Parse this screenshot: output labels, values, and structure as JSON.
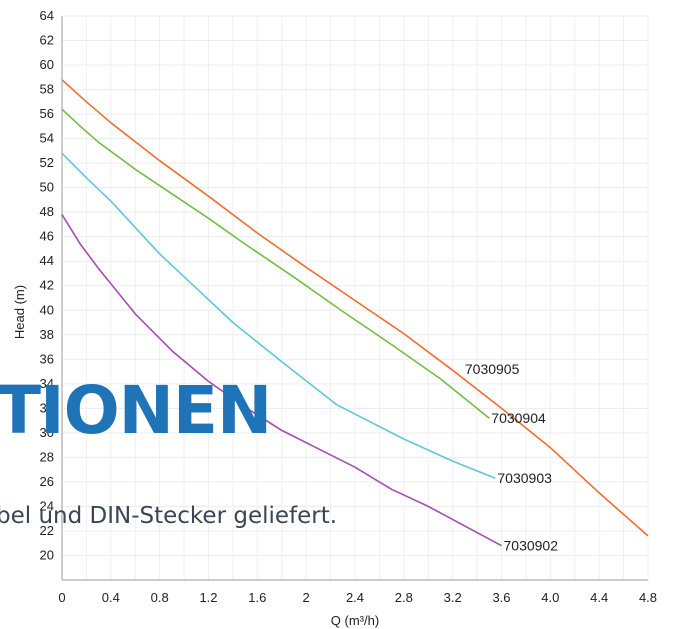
{
  "chart_data": {
    "type": "line",
    "xlabel": "Q (m³/h)",
    "ylabel": "Head (m)",
    "xlim": [
      0,
      4.8
    ],
    "ylim": [
      18,
      64
    ],
    "x_ticks": [
      "0",
      "0.4",
      "0.8",
      "1.2",
      "1.6",
      "2",
      "2.4",
      "2.8",
      "3.2",
      "3.6",
      "4.0",
      "4.4",
      "4.8"
    ],
    "y_ticks": [
      "20",
      "22",
      "24",
      "26",
      "28",
      "30",
      "32",
      "34",
      "36",
      "38",
      "40",
      "42",
      "44",
      "46",
      "48",
      "50",
      "52",
      "54",
      "56",
      "58",
      "60",
      "62",
      "64"
    ],
    "grid": true,
    "series": [
      {
        "name": "7030905",
        "color": "#ee6f2d",
        "x": [
          0,
          0.2,
          0.4,
          0.8,
          1.2,
          1.6,
          2.0,
          2.4,
          2.8,
          3.2,
          3.6,
          4.0,
          4.4,
          4.8
        ],
        "y": [
          58.8,
          57.0,
          55.3,
          52.2,
          49.3,
          46.3,
          43.5,
          40.8,
          38.1,
          35.1,
          32.0,
          28.8,
          25.1,
          21.6
        ]
      },
      {
        "name": "7030904",
        "color": "#74bd43",
        "x": [
          0,
          0.15,
          0.3,
          0.6,
          0.9,
          1.2,
          1.5,
          1.9,
          2.3,
          2.7,
          3.1,
          3.5
        ],
        "y": [
          56.4,
          55.0,
          53.7,
          51.5,
          49.5,
          47.5,
          45.4,
          42.7,
          39.9,
          37.2,
          34.4,
          31.2
        ]
      },
      {
        "name": "7030903",
        "color": "#5ec8d8",
        "x": [
          0,
          0.2,
          0.4,
          0.8,
          1.1,
          1.4,
          1.8,
          2.25,
          2.8,
          3.2,
          3.55
        ],
        "y": [
          52.8,
          50.8,
          48.9,
          44.6,
          41.8,
          39.0,
          35.8,
          32.3,
          29.5,
          27.7,
          26.3
        ]
      },
      {
        "name": "7030902",
        "color": "#a64db0",
        "x": [
          0,
          0.15,
          0.3,
          0.6,
          0.9,
          1.2,
          1.5,
          1.8,
          2.1,
          2.4,
          2.7,
          3.0,
          3.3,
          3.6
        ],
        "y": [
          47.8,
          45.4,
          43.4,
          39.7,
          36.7,
          34.2,
          32.1,
          30.2,
          28.7,
          27.2,
          25.4,
          24.0,
          22.4,
          20.8
        ]
      }
    ]
  },
  "overlay": {
    "heading": "TIONEN",
    "sentence": "bel und DIN-Stecker geliefert."
  }
}
